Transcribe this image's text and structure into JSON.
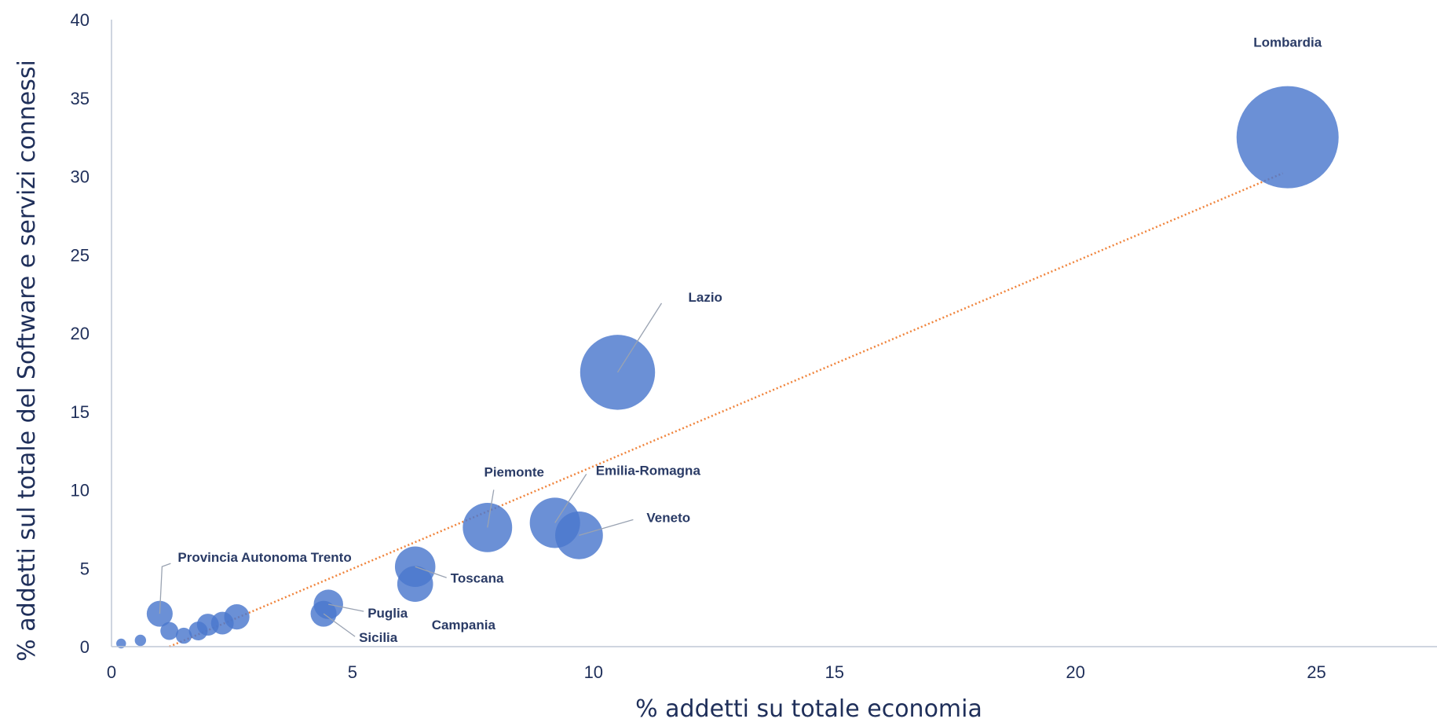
{
  "colors": {
    "bubble": "#4a77cd",
    "trendline": "#f0843c",
    "axis_text": "#1f2f5a"
  },
  "chart_data": {
    "type": "scatter",
    "subtype": "bubble",
    "xlabel": "% addetti su totale economia",
    "ylabel": "% addetti  sul totale del Software e servizi connessi",
    "xlim": [
      0,
      27.5
    ],
    "ylim": [
      0,
      40
    ],
    "x_ticks": [
      0,
      5,
      10,
      15,
      20,
      25
    ],
    "y_ticks": [
      0,
      5,
      10,
      15,
      20,
      25,
      30,
      35,
      40
    ],
    "grid": false,
    "trendline": {
      "type": "linear",
      "style": "dotted",
      "from": [
        1.2,
        0
      ],
      "to": [
        24.3,
        30.2
      ]
    },
    "points": [
      {
        "name": "Lombardia",
        "x": 24.4,
        "y": 32.5,
        "size": 32.5,
        "label": "Lombardia"
      },
      {
        "name": "Lazio",
        "x": 10.5,
        "y": 17.5,
        "size": 17.5,
        "label": "Lazio"
      },
      {
        "name": "Piemonte",
        "x": 7.8,
        "y": 7.6,
        "size": 7.6,
        "label": "Piemonte"
      },
      {
        "name": "Emilia-Romagna",
        "x": 9.2,
        "y": 7.9,
        "size": 7.9,
        "label": "Emilia-Romagna"
      },
      {
        "name": "Veneto",
        "x": 9.7,
        "y": 7.1,
        "size": 7.1,
        "label": "Veneto"
      },
      {
        "name": "Toscana",
        "x": 6.3,
        "y": 5.1,
        "size": 5.1,
        "label": "Toscana"
      },
      {
        "name": "Campania",
        "x": 6.3,
        "y": 4.0,
        "size": 4.0,
        "label": "Campania"
      },
      {
        "name": "Puglia",
        "x": 4.5,
        "y": 2.7,
        "size": 2.7,
        "label": "Puglia"
      },
      {
        "name": "Sicilia",
        "x": 4.4,
        "y": 2.1,
        "size": 2.1,
        "label": "Sicilia"
      },
      {
        "name": "Provincia Autonoma Trento",
        "x": 1.0,
        "y": 2.1,
        "size": 2.1,
        "label": "Provincia Autonoma Trento"
      },
      {
        "name": "",
        "x": 2.6,
        "y": 1.9,
        "size": 2.0,
        "label": ""
      },
      {
        "name": "",
        "x": 2.3,
        "y": 1.5,
        "size": 1.6,
        "label": ""
      },
      {
        "name": "",
        "x": 2.0,
        "y": 1.4,
        "size": 1.5,
        "label": ""
      },
      {
        "name": "",
        "x": 1.8,
        "y": 1.0,
        "size": 1.1,
        "label": ""
      },
      {
        "name": "",
        "x": 1.2,
        "y": 1.0,
        "size": 1.0,
        "label": ""
      },
      {
        "name": "",
        "x": 1.5,
        "y": 0.7,
        "size": 0.8,
        "label": ""
      },
      {
        "name": "",
        "x": 0.6,
        "y": 0.4,
        "size": 0.4,
        "label": ""
      },
      {
        "name": "",
        "x": 0.2,
        "y": 0.2,
        "size": 0.3,
        "label": ""
      }
    ]
  }
}
